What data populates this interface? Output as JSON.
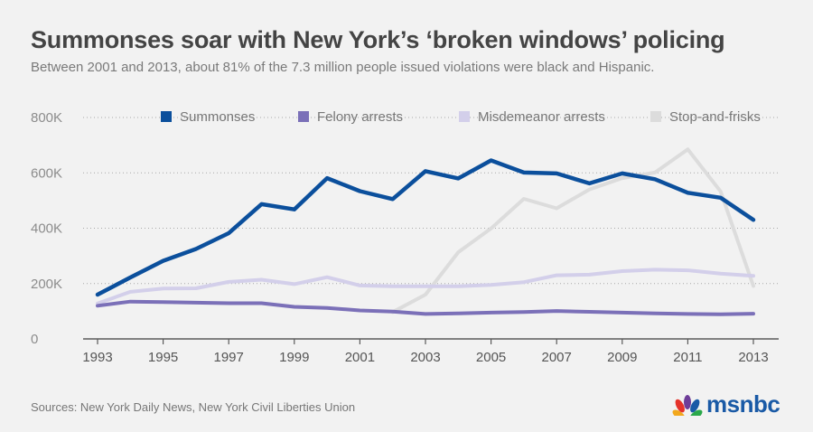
{
  "title": "Summonses soar with New York’s ‘broken windows’ policing",
  "subtitle": "Between 2001 and 2013, about 81% of the 7.3 million people issued violations were black and Hispanic.",
  "source": "Sources: New York Daily News, New York Civil Liberties Union",
  "logo": {
    "text": "msnbc",
    "icon": "peacock-icon"
  },
  "chart_data": {
    "type": "line",
    "title": "Summonses soar with New York’s ‘broken windows’ policing",
    "xlabel": "",
    "ylabel": "",
    "xlim": [
      1993,
      2013
    ],
    "ylim": [
      0,
      800000
    ],
    "x_ticks": [
      1993,
      1995,
      1997,
      1999,
      2001,
      2003,
      2005,
      2007,
      2009,
      2011,
      2013
    ],
    "x_tick_labels": [
      "1993",
      "1995",
      "1997",
      "1999",
      "2001",
      "2003",
      "2005",
      "2007",
      "2009",
      "2011",
      "2013"
    ],
    "y_ticks": [
      0,
      200000,
      400000,
      600000,
      800000
    ],
    "y_tick_labels": [
      "0",
      "200K",
      "400K",
      "600K",
      "800K"
    ],
    "grid": "horizontal-dotted",
    "legend_position": "top",
    "series": [
      {
        "name": "Summonses",
        "color": "#0b4f9c",
        "points": [
          [
            1993,
            160000
          ],
          [
            1994,
            222000
          ],
          [
            1995,
            282000
          ],
          [
            1996,
            325000
          ],
          [
            1997,
            382000
          ],
          [
            1998,
            487000
          ],
          [
            1999,
            468000
          ],
          [
            2000,
            581000
          ],
          [
            2001,
            534000
          ],
          [
            2002,
            505000
          ],
          [
            2003,
            606000
          ],
          [
            2004,
            580000
          ],
          [
            2005,
            645000
          ],
          [
            2006,
            601000
          ],
          [
            2007,
            598000
          ],
          [
            2008,
            562000
          ],
          [
            2009,
            598000
          ],
          [
            2010,
            577000
          ],
          [
            2011,
            528000
          ],
          [
            2012,
            510000
          ],
          [
            2013,
            430000
          ]
        ]
      },
      {
        "name": "Felony arrests",
        "color": "#7b70b8",
        "points": [
          [
            1993,
            120000
          ],
          [
            1994,
            135000
          ],
          [
            1995,
            133000
          ],
          [
            1996,
            131000
          ],
          [
            1997,
            129000
          ],
          [
            1998,
            129000
          ],
          [
            1999,
            116000
          ],
          [
            2000,
            112000
          ],
          [
            2001,
            103000
          ],
          [
            2002,
            99000
          ],
          [
            2003,
            90000
          ],
          [
            2004,
            92000
          ],
          [
            2005,
            95000
          ],
          [
            2006,
            97000
          ],
          [
            2007,
            101000
          ],
          [
            2008,
            98000
          ],
          [
            2009,
            95000
          ],
          [
            2010,
            92000
          ],
          [
            2011,
            90000
          ],
          [
            2012,
            89000
          ],
          [
            2013,
            91000
          ]
        ]
      },
      {
        "name": "Misdemeanor arrests",
        "color": "#d3cfea",
        "points": [
          [
            1993,
            128000
          ],
          [
            1994,
            170000
          ],
          [
            1995,
            182000
          ],
          [
            1996,
            183000
          ],
          [
            1997,
            206000
          ],
          [
            1998,
            214000
          ],
          [
            1999,
            198000
          ],
          [
            2000,
            223000
          ],
          [
            2001,
            193000
          ],
          [
            2002,
            190000
          ],
          [
            2003,
            190000
          ],
          [
            2004,
            190000
          ],
          [
            2005,
            195000
          ],
          [
            2006,
            205000
          ],
          [
            2007,
            230000
          ],
          [
            2008,
            232000
          ],
          [
            2009,
            245000
          ],
          [
            2010,
            250000
          ],
          [
            2011,
            248000
          ],
          [
            2012,
            236000
          ],
          [
            2013,
            228000
          ]
        ]
      },
      {
        "name": "Stop-and-frisks",
        "color": "#dcdcdc",
        "points": [
          [
            2002,
            97000
          ],
          [
            2003,
            160000
          ],
          [
            2004,
            313000
          ],
          [
            2005,
            399000
          ],
          [
            2006,
            506000
          ],
          [
            2007,
            472000
          ],
          [
            2008,
            540000
          ],
          [
            2009,
            581000
          ],
          [
            2010,
            601000
          ],
          [
            2011,
            685000
          ],
          [
            2012,
            533000
          ],
          [
            2013,
            191000
          ]
        ]
      }
    ]
  }
}
